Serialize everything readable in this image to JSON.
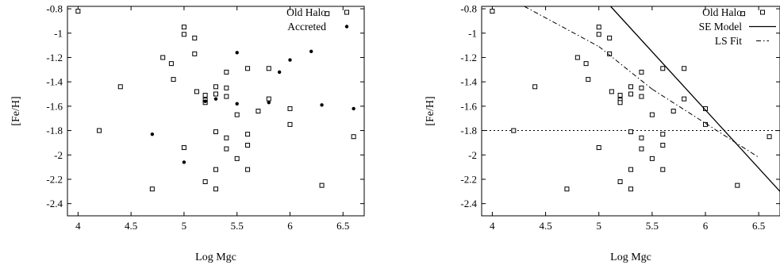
{
  "chart_data": [
    {
      "type": "scatter",
      "title": "",
      "xlabel": "Log Mgc",
      "ylabel": "[Fe/H]",
      "xlim": [
        3.9,
        6.7
      ],
      "ylim": [
        -2.5,
        -0.78
      ],
      "xticks": [
        "4",
        "4.5",
        "5",
        "5.5",
        "6",
        "6.5"
      ],
      "yticks": [
        "-0.8",
        "-1",
        "-1.2",
        "-1.4",
        "-1.6",
        "-1.8",
        "-2",
        "-2.2",
        "-2.4"
      ],
      "legend_position": "top-right",
      "grid": false,
      "series": [
        {
          "name": "Old Halo",
          "marker": "open-square",
          "points": [
            [
              4.0,
              -0.82
            ],
            [
              4.2,
              -1.8
            ],
            [
              4.4,
              -1.44
            ],
            [
              4.7,
              -2.28
            ],
            [
              4.8,
              -1.2
            ],
            [
              4.88,
              -1.25
            ],
            [
              4.9,
              -1.38
            ],
            [
              5.0,
              -0.95
            ],
            [
              5.0,
              -1.01
            ],
            [
              5.0,
              -1.94
            ],
            [
              5.1,
              -1.04
            ],
            [
              5.1,
              -1.17
            ],
            [
              5.12,
              -1.48
            ],
            [
              5.2,
              -1.51
            ],
            [
              5.2,
              -1.55
            ],
            [
              5.2,
              -1.57
            ],
            [
              5.2,
              -2.22
            ],
            [
              5.3,
              -1.44
            ],
            [
              5.3,
              -1.5
            ],
            [
              5.3,
              -1.81
            ],
            [
              5.3,
              -2.12
            ],
            [
              5.3,
              -2.28
            ],
            [
              5.4,
              -1.32
            ],
            [
              5.4,
              -1.45
            ],
            [
              5.4,
              -1.52
            ],
            [
              5.4,
              -1.86
            ],
            [
              5.4,
              -1.95
            ],
            [
              5.5,
              -1.67
            ],
            [
              5.5,
              -2.03
            ],
            [
              5.6,
              -1.29
            ],
            [
              5.6,
              -1.83
            ],
            [
              5.6,
              -1.92
            ],
            [
              5.6,
              -2.12
            ],
            [
              5.7,
              -1.64
            ],
            [
              5.8,
              -1.29
            ],
            [
              5.8,
              -1.54
            ],
            [
              6.0,
              -1.62
            ],
            [
              6.0,
              -1.75
            ],
            [
              6.3,
              -2.25
            ],
            [
              6.35,
              -0.84
            ],
            [
              6.6,
              -1.85
            ]
          ]
        },
        {
          "name": "Accreted",
          "marker": "filled-circle",
          "points": [
            [
              4.7,
              -1.83
            ],
            [
              5.0,
              -2.06
            ],
            [
              5.2,
              -1.56
            ],
            [
              5.3,
              -1.54
            ],
            [
              5.5,
              -1.16
            ],
            [
              5.5,
              -1.58
            ],
            [
              5.8,
              -1.57
            ],
            [
              5.9,
              -1.32
            ],
            [
              6.0,
              -1.22
            ],
            [
              6.2,
              -1.15
            ],
            [
              6.3,
              -1.59
            ],
            [
              6.6,
              -1.62
            ]
          ]
        }
      ]
    },
    {
      "type": "scatter",
      "title": "",
      "xlabel": "Log Mgc",
      "ylabel": "[Fe/H]",
      "xlim": [
        3.9,
        6.7
      ],
      "ylim": [
        -2.5,
        -0.78
      ],
      "xticks": [
        "4",
        "4.5",
        "5",
        "5.5",
        "6",
        "6.5"
      ],
      "yticks": [
        "-0.8",
        "-1",
        "-1.2",
        "-1.4",
        "-1.6",
        "-1.8",
        "-2",
        "-2.2",
        "-2.4"
      ],
      "legend_position": "top-right",
      "grid": false,
      "reference_line_y": -1.8,
      "series": [
        {
          "name": "Old Halo",
          "marker": "open-square",
          "points": [
            [
              4.0,
              -0.82
            ],
            [
              4.2,
              -1.8
            ],
            [
              4.4,
              -1.44
            ],
            [
              4.7,
              -2.28
            ],
            [
              4.8,
              -1.2
            ],
            [
              4.88,
              -1.25
            ],
            [
              4.9,
              -1.38
            ],
            [
              5.0,
              -0.95
            ],
            [
              5.0,
              -1.01
            ],
            [
              5.0,
              -1.94
            ],
            [
              5.1,
              -1.04
            ],
            [
              5.1,
              -1.17
            ],
            [
              5.12,
              -1.48
            ],
            [
              5.2,
              -1.51
            ],
            [
              5.2,
              -1.55
            ],
            [
              5.2,
              -1.57
            ],
            [
              5.2,
              -2.22
            ],
            [
              5.3,
              -1.44
            ],
            [
              5.3,
              -1.5
            ],
            [
              5.3,
              -1.81
            ],
            [
              5.3,
              -2.12
            ],
            [
              5.3,
              -2.28
            ],
            [
              5.4,
              -1.32
            ],
            [
              5.4,
              -1.45
            ],
            [
              5.4,
              -1.52
            ],
            [
              5.4,
              -1.86
            ],
            [
              5.4,
              -1.95
            ],
            [
              5.5,
              -1.67
            ],
            [
              5.5,
              -2.03
            ],
            [
              5.6,
              -1.29
            ],
            [
              5.6,
              -1.83
            ],
            [
              5.6,
              -1.92
            ],
            [
              5.6,
              -2.12
            ],
            [
              5.7,
              -1.64
            ],
            [
              5.8,
              -1.29
            ],
            [
              5.8,
              -1.54
            ],
            [
              6.0,
              -1.62
            ],
            [
              6.0,
              -1.75
            ],
            [
              6.3,
              -2.25
            ],
            [
              6.35,
              -0.84
            ],
            [
              6.6,
              -1.85
            ]
          ]
        },
        {
          "name": "SE Model",
          "style": "solid-line",
          "points": [
            [
              5.11,
              -0.78
            ],
            [
              6.7,
              -2.3
            ]
          ]
        },
        {
          "name": "LS Fit",
          "style": "dash-dot-line",
          "points": [
            [
              4.3,
              -0.78
            ],
            [
              5.0,
              -1.11
            ],
            [
              5.5,
              -1.46
            ],
            [
              6.0,
              -1.74
            ],
            [
              6.5,
              -2.02
            ]
          ]
        }
      ]
    }
  ]
}
